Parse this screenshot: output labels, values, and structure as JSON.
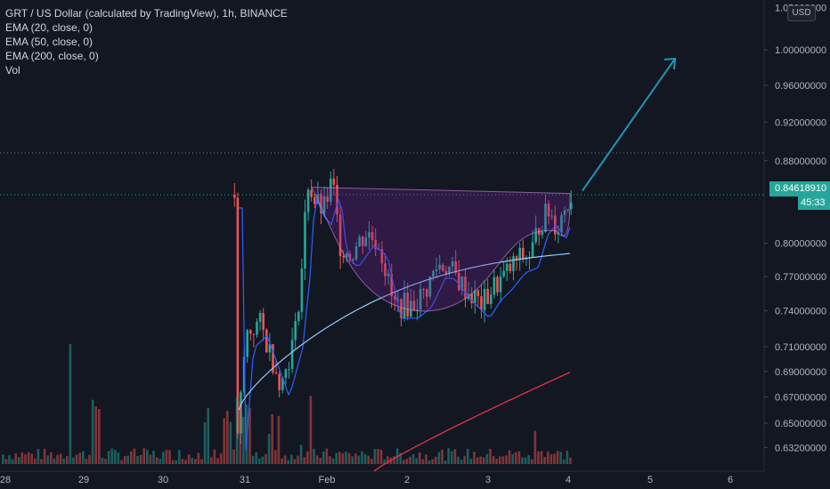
{
  "legend": {
    "title": "GRT / US Dollar (calculated by TradingView), 1h, BINANCE",
    "ema20": "EMA (20, close, 0)",
    "ema50": "EMA (50, close, 0)",
    "ema200": "EMA (200, close, 0)",
    "vol": "Vol"
  },
  "currency_button": "USD",
  "last_price": "0.84618910",
  "countdown": "45:33",
  "colors": {
    "background": "#131722",
    "up": "#26a69a",
    "down": "#ef5350",
    "ema20": "#2962ff",
    "ema50": "#90caf9",
    "ema200": "#f23645",
    "cup_fill": "#7b1fa2",
    "arrow": "#2196b3"
  },
  "chart_data": {
    "type": "candlestick",
    "title": "GRT / US Dollar (calculated by TradingView), 1h, BINANCE",
    "y_axis": {
      "scale": "log",
      "range": [
        0.615,
        1.055
      ],
      "ticks": [
        "1.00000000",
        "0.96000000",
        "0.92000000",
        "0.88000000",
        "0.80000000",
        "0.77000000",
        "0.74000000",
        "0.71000000",
        "0.69000000",
        "0.67000000",
        "0.65000000",
        "0.63200000"
      ],
      "top_partial_label": "1.05000000"
    },
    "x_axis": {
      "ticks": [
        "28",
        "29",
        "30",
        "31",
        "Feb",
        "2",
        "3",
        "4",
        "5",
        "6"
      ]
    },
    "resistance_level": 0.888,
    "current_price": 0.8461891,
    "series": [
      {
        "name": "EMA (20, close, 0)",
        "start": 0.73,
        "end": 0.81
      },
      {
        "name": "EMA (50, close, 0)",
        "start": 0.66,
        "end": 0.79
      },
      {
        "name": "EMA (200, close, 0)",
        "start": 0.615,
        "end": 0.69
      }
    ],
    "annotations": [
      {
        "type": "cup-and-handle",
        "rim_price": 0.85,
        "bottom_price": 0.74
      },
      {
        "type": "arrow",
        "from_price": 0.85,
        "to_price": 0.99,
        "direction": "up"
      }
    ]
  }
}
